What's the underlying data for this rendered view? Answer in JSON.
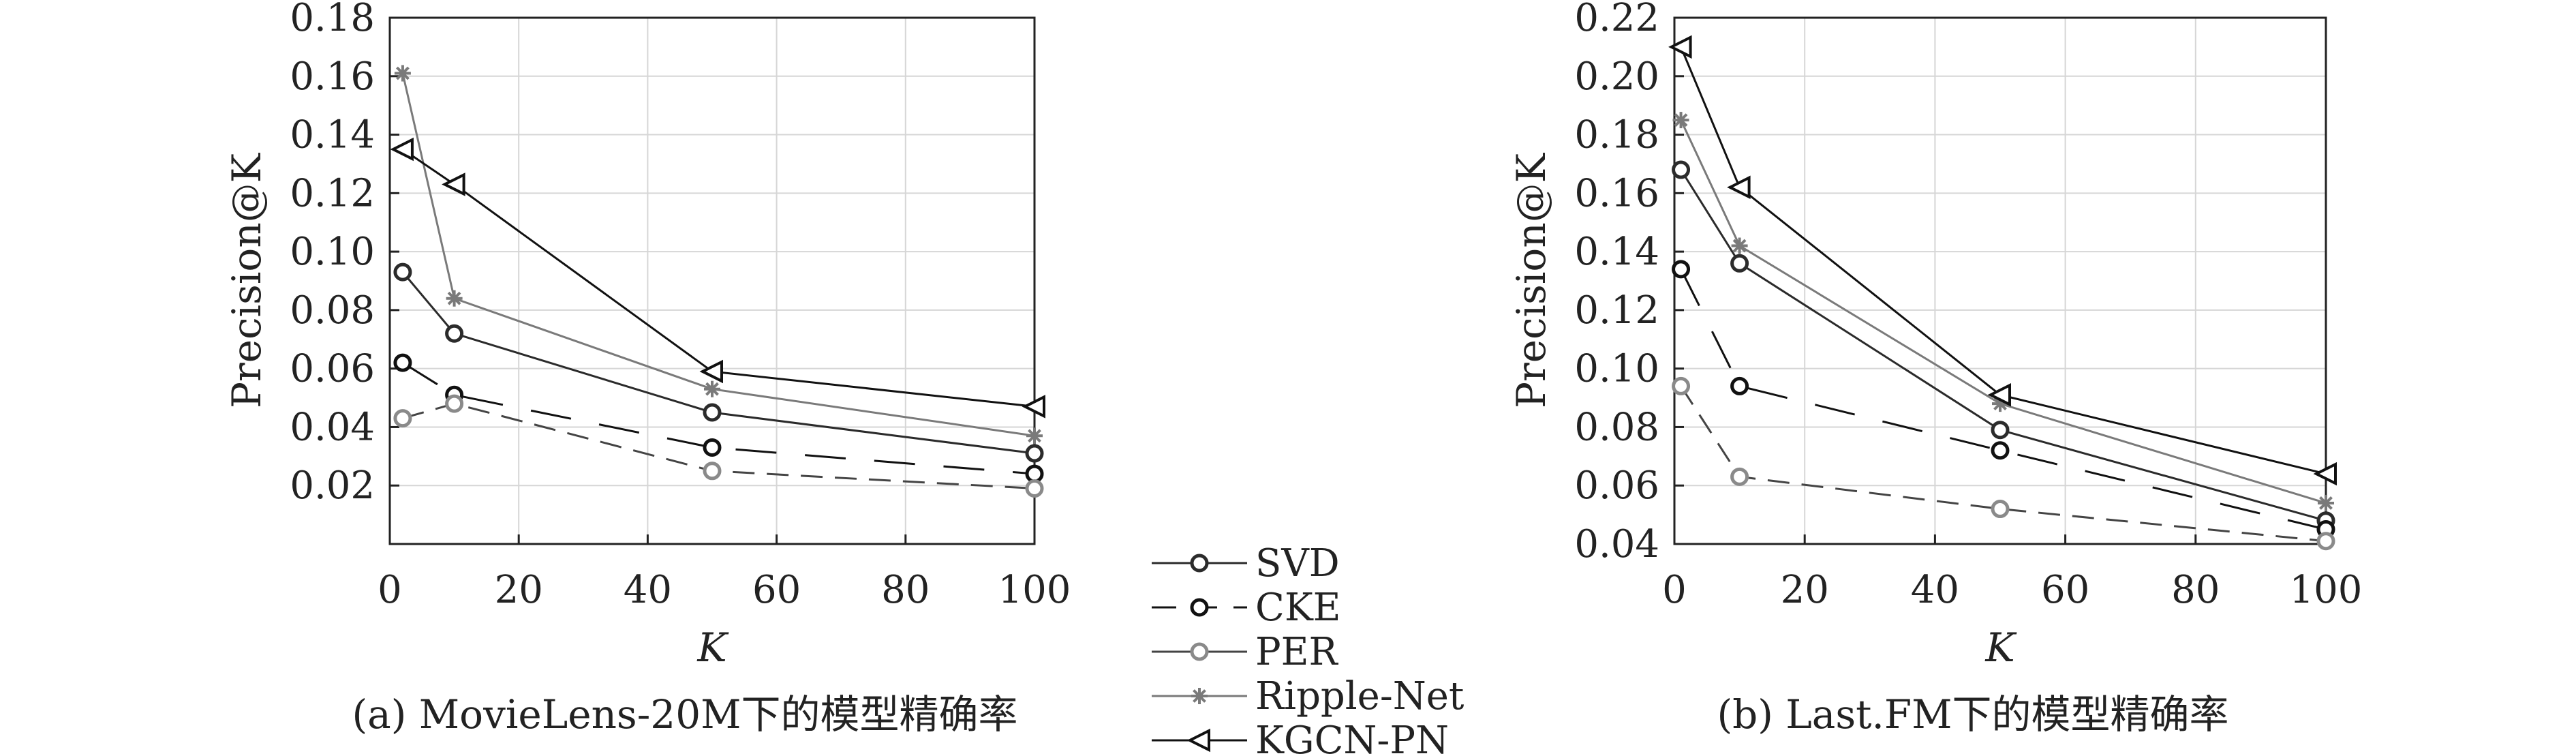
{
  "colors": {
    "SVD": "#2b2b2b",
    "CKE": "#111111",
    "PER": "#8a8a8a",
    "Ripple-Net": "#7a7a7a",
    "KGCN-PN": "#111111",
    "grid": "#d6d6d6",
    "axis": "#222222"
  },
  "legend": {
    "placement": "between-panels-bottom",
    "items": [
      {
        "name": "SVD",
        "marker": "circle",
        "line": "solid"
      },
      {
        "name": "CKE",
        "marker": "circle",
        "line": "dashed"
      },
      {
        "name": "PER",
        "marker": "circle",
        "line": "solid"
      },
      {
        "name": "Ripple-Net",
        "marker": "asterisk",
        "line": "solid"
      },
      {
        "name": "KGCN-PN",
        "marker": "left-triangle",
        "line": "solid"
      }
    ]
  },
  "chart_data": [
    {
      "type": "line",
      "caption": "(a) MovieLens-20M下的模型精确率",
      "xlabel": "K",
      "ylabel": "Precision@K",
      "xlim": [
        0,
        100
      ],
      "ylim": [
        0,
        0.18
      ],
      "xticks": [
        0,
        20,
        40,
        60,
        80,
        100
      ],
      "xtick_labels": [
        "0",
        "20",
        "40",
        "60",
        "80",
        "100"
      ],
      "yticks": [
        0.02,
        0.04,
        0.06,
        0.08,
        0.1,
        0.12,
        0.14,
        0.16,
        0.18
      ],
      "ytick_labels": [
        "0.02",
        "0.04",
        "0.06",
        "0.08",
        "0.10",
        "0.12",
        "0.14",
        "0.16",
        "0.18"
      ],
      "grid": true,
      "x": [
        2,
        10,
        50,
        100
      ],
      "series": [
        {
          "name": "SVD",
          "values": [
            0.093,
            0.072,
            0.045,
            0.031
          ]
        },
        {
          "name": "CKE",
          "values": [
            0.062,
            0.051,
            0.033,
            0.024
          ]
        },
        {
          "name": "PER",
          "values": [
            0.043,
            0.048,
            0.025,
            0.019
          ]
        },
        {
          "name": "Ripple-Net",
          "values": [
            0.161,
            0.084,
            0.053,
            0.037
          ]
        },
        {
          "name": "KGCN-PN",
          "values": [
            0.135,
            0.123,
            0.059,
            0.047
          ]
        }
      ]
    },
    {
      "type": "line",
      "caption": "(b) Last.FM下的模型精确率",
      "xlabel": "K",
      "ylabel": "Precision@K",
      "xlim": [
        0,
        100
      ],
      "ylim": [
        0.04,
        0.22
      ],
      "xticks": [
        0,
        20,
        40,
        60,
        80,
        100
      ],
      "xtick_labels": [
        "0",
        "20",
        "40",
        "60",
        "80",
        "100"
      ],
      "yticks": [
        0.04,
        0.06,
        0.08,
        0.1,
        0.12,
        0.14,
        0.16,
        0.18,
        0.2,
        0.22
      ],
      "ytick_labels": [
        "0.04",
        "0.06",
        "0.08",
        "0.10",
        "0.12",
        "0.14",
        "0.16",
        "0.18",
        "0.20",
        "0.22"
      ],
      "grid": true,
      "x": [
        1,
        10,
        50,
        100
      ],
      "series": [
        {
          "name": "SVD",
          "values": [
            0.168,
            0.136,
            0.079,
            0.048
          ]
        },
        {
          "name": "CKE",
          "values": [
            0.134,
            0.094,
            0.072,
            0.045
          ]
        },
        {
          "name": "PER",
          "values": [
            0.094,
            0.063,
            0.052,
            0.041
          ]
        },
        {
          "name": "Ripple-Net",
          "values": [
            0.185,
            0.142,
            0.088,
            0.054
          ]
        },
        {
          "name": "KGCN-PN",
          "values": [
            0.21,
            0.162,
            0.091,
            0.064
          ]
        }
      ]
    }
  ]
}
